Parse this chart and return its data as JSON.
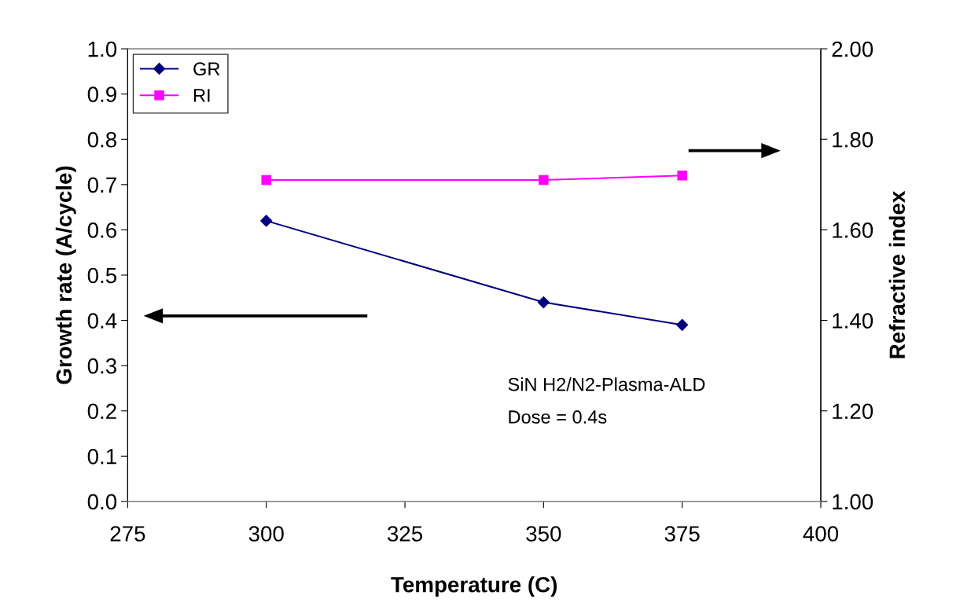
{
  "chart_data": {
    "type": "line",
    "xlabel": "Temperature (C)",
    "ylabel": "Growth rate (A/cycle)",
    "y2label": "Refractive index",
    "x": [
      300,
      350,
      375
    ],
    "series": [
      {
        "name": "GR",
        "color": "#000080",
        "values": [
          0.62,
          0.44,
          0.39
        ],
        "marker": "diamond"
      },
      {
        "name": "RI",
        "color": "#ff00ff",
        "values": [
          1.71,
          1.71,
          1.72
        ],
        "marker": "square",
        "axis": "y2"
      }
    ],
    "xlim": [
      275,
      400
    ],
    "xticks": [
      275,
      300,
      325,
      350,
      375,
      400
    ],
    "ylim": [
      0,
      1.0
    ],
    "yticks": [
      {
        "value": 0,
        "label": "0.0"
      },
      0.1,
      0.2,
      0.3,
      0.4,
      0.5,
      0.6,
      0.7,
      0.8,
      0.9,
      {
        "value": 1.0,
        "label": "1.0"
      }
    ],
    "y2lim": [
      1.0,
      2.0
    ],
    "y2ticks": [
      {
        "value": 1.0,
        "label": "1.00"
      },
      {
        "value": 1.2,
        "label": "1.20"
      },
      {
        "value": 1.4,
        "label": "1.40"
      },
      {
        "value": 1.6,
        "label": "1.60"
      },
      {
        "value": 1.8,
        "label": "1.80"
      },
      {
        "value": 2.0,
        "label": "2.00"
      }
    ],
    "annotations": [
      "SiN H2/N2-Plasma-ALD",
      "Dose = 0.4s"
    ],
    "legend": "top left",
    "grid": false,
    "line_style": "solid"
  }
}
